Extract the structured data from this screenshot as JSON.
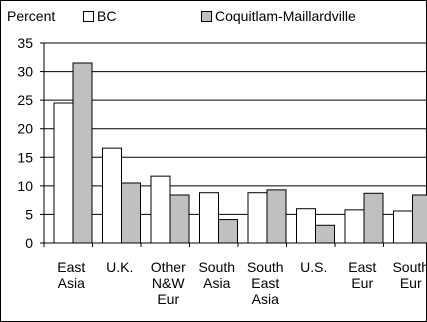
{
  "chart_data": {
    "type": "bar",
    "ylabel": "Percent",
    "categories": [
      [
        "East",
        "Asia"
      ],
      [
        "U.K."
      ],
      [
        "Other",
        "N&W",
        "Eur"
      ],
      [
        "South",
        "Asia"
      ],
      [
        "South",
        "East",
        "Asia"
      ],
      [
        "U.S."
      ],
      [
        "East",
        "Eur"
      ],
      [
        "South",
        "Eur"
      ]
    ],
    "series": [
      {
        "name": "BC",
        "values": [
          24.5,
          16.6,
          11.7,
          8.8,
          8.8,
          6.0,
          5.8,
          5.6
        ],
        "color": "#ffffff"
      },
      {
        "name": "Coquitlam-Maillardville",
        "values": [
          31.5,
          10.5,
          8.4,
          4.1,
          9.3,
          3.1,
          8.7,
          8.4
        ],
        "color": "#c0c0c0"
      }
    ],
    "yticks": [
      0,
      5,
      10,
      15,
      20,
      25,
      30,
      35
    ],
    "ylim": [
      0,
      35
    ],
    "grid": true,
    "legend": "top"
  }
}
